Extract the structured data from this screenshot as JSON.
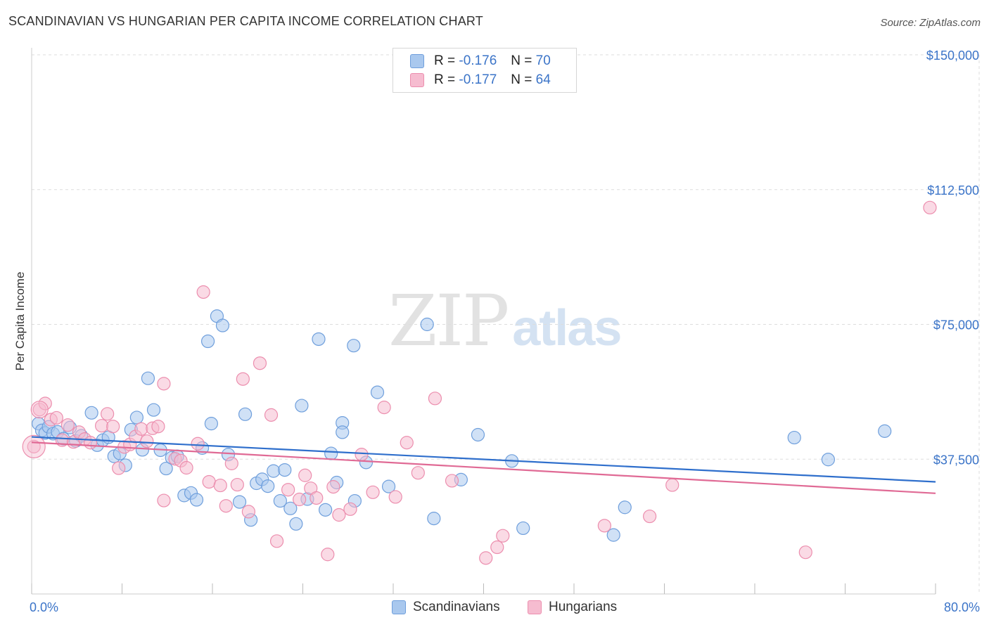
{
  "title": "SCANDINAVIAN VS HUNGARIAN PER CAPITA INCOME CORRELATION CHART",
  "source": "Source: ZipAtlas.com",
  "watermark": {
    "zip": "ZIP",
    "atlas": "atlas"
  },
  "legend": {
    "rows": [
      {
        "r_label": "R =",
        "r_value": "-0.176",
        "n_label": "N =",
        "n_value": "70"
      },
      {
        "r_label": "R =",
        "r_value": "-0.177",
        "n_label": "N =",
        "n_value": "64"
      }
    ]
  },
  "bottom_legend": [
    "Scandinavians",
    "Hungarians"
  ],
  "colors": {
    "blue_fill": "#a9c8ee",
    "blue_stroke": "#6f9fdc",
    "blue_line": "#2f6fcc",
    "pink_fill": "#f6bcd0",
    "pink_stroke": "#ec8eae",
    "pink_line": "#e06a95",
    "tick_text": "#3b74c8",
    "grid": "#dddddd"
  },
  "chart_data": {
    "type": "scatter",
    "title": "SCANDINAVIAN VS HUNGARIAN PER CAPITA INCOME CORRELATION CHART",
    "xlabel": "",
    "ylabel": "Per Capita Income",
    "xlim": [
      0,
      80
    ],
    "ylim": [
      0,
      150000
    ],
    "x_ticks": [
      0,
      80
    ],
    "x_tick_labels": [
      "0.0%",
      "80.0%"
    ],
    "y_ticks": [
      37500,
      75000,
      112500,
      150000
    ],
    "y_tick_labels": [
      "$37,500",
      "$75,000",
      "$112,500",
      "$150,000"
    ],
    "grid": true,
    "legend_position": "top-center",
    "series": [
      {
        "name": "Scandinavians",
        "R": -0.176,
        "N": 70,
        "trend": [
          [
            0,
            43700
          ],
          [
            80,
            31200
          ]
        ],
        "points": [
          [
            0.6,
            47400
          ],
          [
            0.9,
            45500
          ],
          [
            1.2,
            44800
          ],
          [
            1.5,
            46500
          ],
          [
            1.9,
            44600
          ],
          [
            2.3,
            45100
          ],
          [
            2.8,
            43200
          ],
          [
            3.4,
            46300
          ],
          [
            3.9,
            42600
          ],
          [
            4.4,
            44000
          ],
          [
            5.3,
            50400
          ],
          [
            5.8,
            41400
          ],
          [
            6.3,
            42800
          ],
          [
            6.8,
            43600
          ],
          [
            7.3,
            38300
          ],
          [
            7.8,
            39100
          ],
          [
            8.3,
            35800
          ],
          [
            8.8,
            45700
          ],
          [
            9.3,
            49100
          ],
          [
            9.8,
            40100
          ],
          [
            10.3,
            60000
          ],
          [
            10.8,
            51200
          ],
          [
            11.4,
            40000
          ],
          [
            11.9,
            34900
          ],
          [
            12.4,
            37900
          ],
          [
            12.9,
            38300
          ],
          [
            13.5,
            27400
          ],
          [
            14.1,
            28100
          ],
          [
            14.6,
            26200
          ],
          [
            15.1,
            40600
          ],
          [
            15.6,
            70300
          ],
          [
            15.9,
            47400
          ],
          [
            16.4,
            77300
          ],
          [
            16.9,
            74700
          ],
          [
            17.4,
            38800
          ],
          [
            18.4,
            25600
          ],
          [
            18.9,
            50000
          ],
          [
            19.4,
            20600
          ],
          [
            19.9,
            30800
          ],
          [
            20.4,
            31900
          ],
          [
            20.9,
            30000
          ],
          [
            21.4,
            34200
          ],
          [
            22.0,
            25900
          ],
          [
            22.4,
            34500
          ],
          [
            22.9,
            23800
          ],
          [
            23.4,
            19500
          ],
          [
            23.9,
            52400
          ],
          [
            24.4,
            26400
          ],
          [
            25.4,
            70900
          ],
          [
            26.0,
            23400
          ],
          [
            26.5,
            39100
          ],
          [
            27.0,
            31000
          ],
          [
            27.5,
            47600
          ],
          [
            27.5,
            45000
          ],
          [
            28.5,
            69100
          ],
          [
            28.6,
            25900
          ],
          [
            29.6,
            36600
          ],
          [
            30.6,
            56100
          ],
          [
            31.6,
            29900
          ],
          [
            35.0,
            75000
          ],
          [
            35.6,
            21000
          ],
          [
            38.0,
            31800
          ],
          [
            39.5,
            44300
          ],
          [
            42.5,
            37000
          ],
          [
            43.5,
            18300
          ],
          [
            52.5,
            24100
          ],
          [
            51.5,
            16400
          ],
          [
            67.5,
            43500
          ],
          [
            70.5,
            37400
          ],
          [
            75.5,
            45300
          ]
        ]
      },
      {
        "name": "Hungarians",
        "R": -0.177,
        "N": 64,
        "trend": [
          [
            0,
            42200
          ],
          [
            80,
            28000
          ]
        ],
        "points": [
          [
            0.2,
            41000
          ],
          [
            0.7,
            51300
          ],
          [
            1.2,
            53000
          ],
          [
            1.7,
            48500
          ],
          [
            2.2,
            49000
          ],
          [
            2.7,
            42800
          ],
          [
            3.2,
            47000
          ],
          [
            3.7,
            42300
          ],
          [
            4.2,
            45000
          ],
          [
            4.7,
            43100
          ],
          [
            5.2,
            42100
          ],
          [
            6.2,
            46800
          ],
          [
            6.7,
            50100
          ],
          [
            7.2,
            46600
          ],
          [
            7.7,
            35000
          ],
          [
            8.2,
            40900
          ],
          [
            8.7,
            41600
          ],
          [
            9.2,
            43800
          ],
          [
            9.7,
            45900
          ],
          [
            10.2,
            42500
          ],
          [
            10.7,
            46100
          ],
          [
            11.2,
            46600
          ],
          [
            11.7,
            58500
          ],
          [
            11.7,
            26000
          ],
          [
            12.7,
            37600
          ],
          [
            13.2,
            37100
          ],
          [
            13.7,
            35100
          ],
          [
            14.7,
            41800
          ],
          [
            15.2,
            84000
          ],
          [
            15.7,
            31200
          ],
          [
            16.7,
            30200
          ],
          [
            17.2,
            24500
          ],
          [
            17.7,
            36300
          ],
          [
            18.2,
            30400
          ],
          [
            18.7,
            59800
          ],
          [
            19.2,
            22900
          ],
          [
            20.2,
            64200
          ],
          [
            21.2,
            49800
          ],
          [
            21.7,
            14700
          ],
          [
            22.7,
            29000
          ],
          [
            23.7,
            26300
          ],
          [
            24.2,
            33000
          ],
          [
            24.7,
            29400
          ],
          [
            25.2,
            26700
          ],
          [
            26.2,
            11000
          ],
          [
            26.7,
            29800
          ],
          [
            27.2,
            22000
          ],
          [
            28.2,
            23600
          ],
          [
            29.2,
            38800
          ],
          [
            30.2,
            28300
          ],
          [
            31.2,
            51900
          ],
          [
            32.2,
            27000
          ],
          [
            33.2,
            42100
          ],
          [
            34.2,
            33700
          ],
          [
            35.7,
            54400
          ],
          [
            37.2,
            31500
          ],
          [
            40.2,
            10000
          ],
          [
            41.2,
            13000
          ],
          [
            41.7,
            16200
          ],
          [
            50.7,
            19000
          ],
          [
            54.7,
            21600
          ],
          [
            56.7,
            30300
          ],
          [
            68.5,
            11600
          ],
          [
            79.5,
            107500
          ]
        ]
      }
    ]
  }
}
